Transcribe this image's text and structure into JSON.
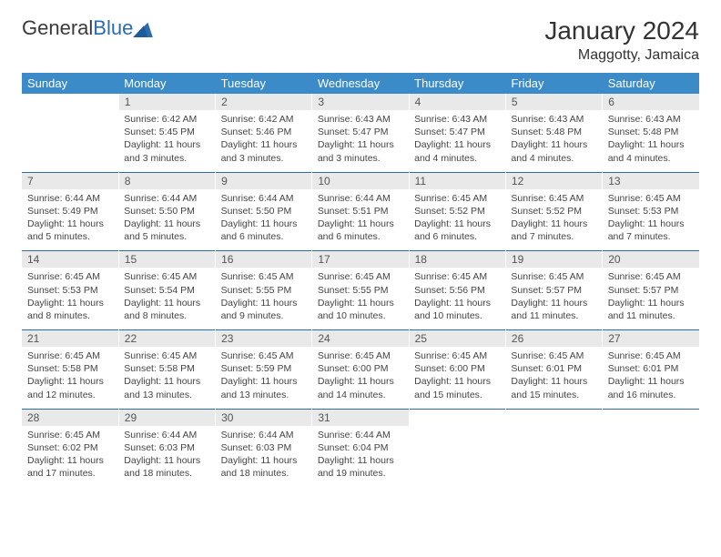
{
  "brand": {
    "part1": "General",
    "part2": "Blue"
  },
  "title": "January 2024",
  "location": "Maggotty, Jamaica",
  "colors": {
    "header_bg": "#3b8bc8",
    "header_text": "#ffffff",
    "daynum_bg": "#e9e9e9",
    "daynum_text": "#555555",
    "body_text": "#444444",
    "rule": "#2a6cb0",
    "logo_gray": "#3a3a3a",
    "logo_blue": "#2a6cb0"
  },
  "days_of_week": [
    "Sunday",
    "Monday",
    "Tuesday",
    "Wednesday",
    "Thursday",
    "Friday",
    "Saturday"
  ],
  "weeks": [
    [
      null,
      {
        "n": "1",
        "sr": "6:42 AM",
        "ss": "5:45 PM",
        "dl": "11 hours and 3 minutes."
      },
      {
        "n": "2",
        "sr": "6:42 AM",
        "ss": "5:46 PM",
        "dl": "11 hours and 3 minutes."
      },
      {
        "n": "3",
        "sr": "6:43 AM",
        "ss": "5:47 PM",
        "dl": "11 hours and 3 minutes."
      },
      {
        "n": "4",
        "sr": "6:43 AM",
        "ss": "5:47 PM",
        "dl": "11 hours and 4 minutes."
      },
      {
        "n": "5",
        "sr": "6:43 AM",
        "ss": "5:48 PM",
        "dl": "11 hours and 4 minutes."
      },
      {
        "n": "6",
        "sr": "6:43 AM",
        "ss": "5:48 PM",
        "dl": "11 hours and 4 minutes."
      }
    ],
    [
      {
        "n": "7",
        "sr": "6:44 AM",
        "ss": "5:49 PM",
        "dl": "11 hours and 5 minutes."
      },
      {
        "n": "8",
        "sr": "6:44 AM",
        "ss": "5:50 PM",
        "dl": "11 hours and 5 minutes."
      },
      {
        "n": "9",
        "sr": "6:44 AM",
        "ss": "5:50 PM",
        "dl": "11 hours and 6 minutes."
      },
      {
        "n": "10",
        "sr": "6:44 AM",
        "ss": "5:51 PM",
        "dl": "11 hours and 6 minutes."
      },
      {
        "n": "11",
        "sr": "6:45 AM",
        "ss": "5:52 PM",
        "dl": "11 hours and 6 minutes."
      },
      {
        "n": "12",
        "sr": "6:45 AM",
        "ss": "5:52 PM",
        "dl": "11 hours and 7 minutes."
      },
      {
        "n": "13",
        "sr": "6:45 AM",
        "ss": "5:53 PM",
        "dl": "11 hours and 7 minutes."
      }
    ],
    [
      {
        "n": "14",
        "sr": "6:45 AM",
        "ss": "5:53 PM",
        "dl": "11 hours and 8 minutes."
      },
      {
        "n": "15",
        "sr": "6:45 AM",
        "ss": "5:54 PM",
        "dl": "11 hours and 8 minutes."
      },
      {
        "n": "16",
        "sr": "6:45 AM",
        "ss": "5:55 PM",
        "dl": "11 hours and 9 minutes."
      },
      {
        "n": "17",
        "sr": "6:45 AM",
        "ss": "5:55 PM",
        "dl": "11 hours and 10 minutes."
      },
      {
        "n": "18",
        "sr": "6:45 AM",
        "ss": "5:56 PM",
        "dl": "11 hours and 10 minutes."
      },
      {
        "n": "19",
        "sr": "6:45 AM",
        "ss": "5:57 PM",
        "dl": "11 hours and 11 minutes."
      },
      {
        "n": "20",
        "sr": "6:45 AM",
        "ss": "5:57 PM",
        "dl": "11 hours and 11 minutes."
      }
    ],
    [
      {
        "n": "21",
        "sr": "6:45 AM",
        "ss": "5:58 PM",
        "dl": "11 hours and 12 minutes."
      },
      {
        "n": "22",
        "sr": "6:45 AM",
        "ss": "5:58 PM",
        "dl": "11 hours and 13 minutes."
      },
      {
        "n": "23",
        "sr": "6:45 AM",
        "ss": "5:59 PM",
        "dl": "11 hours and 13 minutes."
      },
      {
        "n": "24",
        "sr": "6:45 AM",
        "ss": "6:00 PM",
        "dl": "11 hours and 14 minutes."
      },
      {
        "n": "25",
        "sr": "6:45 AM",
        "ss": "6:00 PM",
        "dl": "11 hours and 15 minutes."
      },
      {
        "n": "26",
        "sr": "6:45 AM",
        "ss": "6:01 PM",
        "dl": "11 hours and 15 minutes."
      },
      {
        "n": "27",
        "sr": "6:45 AM",
        "ss": "6:01 PM",
        "dl": "11 hours and 16 minutes."
      }
    ],
    [
      {
        "n": "28",
        "sr": "6:45 AM",
        "ss": "6:02 PM",
        "dl": "11 hours and 17 minutes."
      },
      {
        "n": "29",
        "sr": "6:44 AM",
        "ss": "6:03 PM",
        "dl": "11 hours and 18 minutes."
      },
      {
        "n": "30",
        "sr": "6:44 AM",
        "ss": "6:03 PM",
        "dl": "11 hours and 18 minutes."
      },
      {
        "n": "31",
        "sr": "6:44 AM",
        "ss": "6:04 PM",
        "dl": "11 hours and 19 minutes."
      },
      null,
      null,
      null
    ]
  ],
  "labels": {
    "sunrise": "Sunrise: ",
    "sunset": "Sunset: ",
    "daylight": "Daylight: "
  }
}
